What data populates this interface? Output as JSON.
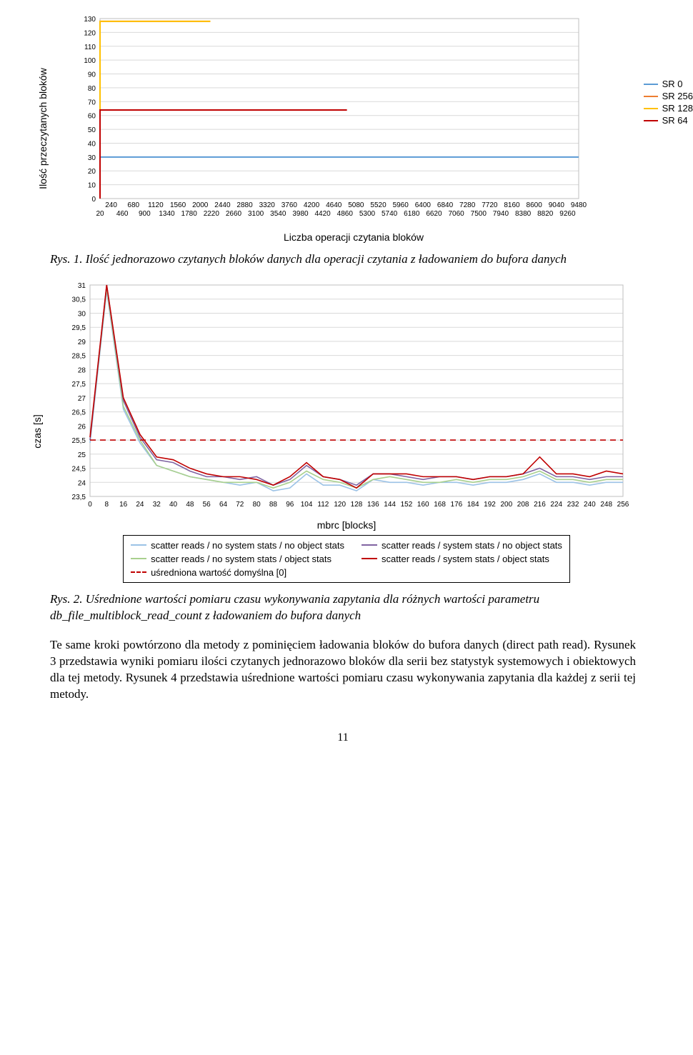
{
  "chart1": {
    "type": "line",
    "y_label": "Ilość przeczytanych bloków",
    "x_label": "Liczba operacji czytania bloków",
    "ylim": [
      0,
      130
    ],
    "ytick_step": 10,
    "yticks": [
      0,
      10,
      20,
      30,
      40,
      50,
      60,
      70,
      80,
      90,
      100,
      110,
      120,
      130
    ],
    "xticks_top": [
      240,
      680,
      1120,
      1560,
      2000,
      2440,
      2880,
      3320,
      3760,
      4200,
      4640,
      5080,
      5520,
      5960,
      6400,
      6840,
      7280,
      7720,
      8160,
      8600,
      9040,
      9480
    ],
    "xticks_bottom": [
      20,
      460,
      900,
      1340,
      1780,
      2220,
      2660,
      3100,
      3540,
      3980,
      4420,
      4860,
      5300,
      5740,
      6180,
      6620,
      7060,
      7500,
      7940,
      8380,
      8820,
      9260
    ],
    "xlim": [
      20,
      9480
    ],
    "background_color": "#ffffff",
    "grid_color": "#d9d9d9",
    "tick_fontsize": 10,
    "label_fontsize": 14,
    "series": [
      {
        "name": "SR 0",
        "color": "#5b9bd5",
        "value": 30,
        "start_x": 20
      },
      {
        "name": "SR 256",
        "color": "#ed7d31",
        "value": 128,
        "start_x": 20,
        "end_x": 2200
      },
      {
        "name": "SR 128",
        "color": "#ffc000",
        "value": 128,
        "start_x": 20,
        "end_x": 2200
      },
      {
        "name": "SR 64",
        "color": "#c00000",
        "value": 64,
        "start_x": 20,
        "end_x": 4900
      }
    ],
    "legend_items": [
      "SR 0",
      "SR 256",
      "SR 128",
      "SR 64"
    ],
    "legend_colors": [
      "#5b9bd5",
      "#ed7d31",
      "#ffc000",
      "#c00000"
    ]
  },
  "caption1_label": "Rys. 1.",
  "caption1_text": "Ilość jednorazowo czytanych bloków danych dla operacji czytania z ładowaniem do bufora danych",
  "chart2": {
    "type": "line",
    "y_label": "czas [s]",
    "x_label": "mbrc [blocks]",
    "ylim": [
      23.5,
      31
    ],
    "yticks": [
      "31",
      "30,5",
      "30",
      "29,5",
      "29",
      "28,5",
      "28",
      "27,5",
      "27",
      "26,5",
      "26",
      "25,5",
      "25",
      "24,5",
      "24",
      "23,5"
    ],
    "ytick_values": [
      31,
      30.5,
      30,
      29.5,
      29,
      28.5,
      28,
      27.5,
      27,
      26.5,
      26,
      25.5,
      25,
      24.5,
      24,
      23.5
    ],
    "xlim": [
      0,
      256
    ],
    "xtick_step": 8,
    "xticks": [
      0,
      8,
      16,
      24,
      32,
      40,
      48,
      56,
      64,
      72,
      80,
      88,
      96,
      104,
      112,
      120,
      128,
      136,
      144,
      152,
      160,
      168,
      176,
      184,
      192,
      200,
      208,
      216,
      224,
      232,
      240,
      248,
      256
    ],
    "background_color": "#ffffff",
    "grid_color": "#d9d9d9",
    "tick_fontsize": 10,
    "label_fontsize": 14,
    "series": [
      {
        "name": "scatter reads / no system stats / no object stats",
        "color": "#9bc2e6",
        "x": [
          0,
          8,
          16,
          24,
          32,
          40,
          48,
          56,
          64,
          72,
          80,
          88,
          96,
          104,
          112,
          120,
          128,
          136,
          144,
          152,
          160,
          168,
          176,
          184,
          192,
          200,
          208,
          216,
          224,
          232,
          240,
          248,
          256
        ],
        "y": [
          25.4,
          30.8,
          26.6,
          25.4,
          24.6,
          24.4,
          24.2,
          24.1,
          24.0,
          23.9,
          24.0,
          23.7,
          23.8,
          24.3,
          23.9,
          23.9,
          23.7,
          24.1,
          24.0,
          24.0,
          23.9,
          24.0,
          24.0,
          23.9,
          24.0,
          24.0,
          24.1,
          24.3,
          24.0,
          24.0,
          23.9,
          24.0,
          24.0
        ]
      },
      {
        "name": "scatter reads / no system stats / object stats",
        "color": "#a9d08e",
        "x": [
          0,
          8,
          16,
          24,
          32,
          40,
          48,
          56,
          64,
          72,
          80,
          88,
          96,
          104,
          112,
          120,
          128,
          136,
          144,
          152,
          160,
          168,
          176,
          184,
          192,
          200,
          208,
          216,
          224,
          232,
          240,
          248,
          256
        ],
        "y": [
          25.5,
          30.9,
          26.7,
          25.5,
          24.6,
          24.4,
          24.2,
          24.1,
          24.0,
          24.0,
          24.0,
          23.8,
          24.0,
          24.4,
          24.1,
          24.0,
          23.8,
          24.1,
          24.2,
          24.1,
          24.0,
          24.0,
          24.1,
          24.0,
          24.1,
          24.1,
          24.2,
          24.4,
          24.1,
          24.1,
          24.0,
          24.1,
          24.1
        ]
      },
      {
        "name": "scatter reads / system stats /  no object stats",
        "color": "#8064a2",
        "x": [
          0,
          8,
          16,
          24,
          32,
          40,
          48,
          56,
          64,
          72,
          80,
          88,
          96,
          104,
          112,
          120,
          128,
          136,
          144,
          152,
          160,
          168,
          176,
          184,
          192,
          200,
          208,
          216,
          224,
          232,
          240,
          248,
          256
        ],
        "y": [
          25.5,
          31.0,
          26.9,
          25.6,
          24.8,
          24.7,
          24.4,
          24.2,
          24.2,
          24.1,
          24.2,
          23.9,
          24.1,
          24.6,
          24.2,
          24.1,
          23.9,
          24.3,
          24.3,
          24.2,
          24.1,
          24.2,
          24.2,
          24.1,
          24.2,
          24.2,
          24.3,
          24.5,
          24.2,
          24.2,
          24.1,
          24.2,
          24.2
        ]
      },
      {
        "name": "scatter reads / system stats /  object stats",
        "color": "#c00000",
        "x": [
          0,
          8,
          16,
          24,
          32,
          40,
          48,
          56,
          64,
          72,
          80,
          88,
          96,
          104,
          112,
          120,
          128,
          136,
          144,
          152,
          160,
          168,
          176,
          184,
          192,
          200,
          208,
          216,
          224,
          232,
          240,
          248,
          256
        ],
        "y": [
          25.6,
          31.0,
          27.0,
          25.7,
          24.9,
          24.8,
          24.5,
          24.3,
          24.2,
          24.2,
          24.1,
          23.9,
          24.2,
          24.7,
          24.2,
          24.1,
          23.8,
          24.3,
          24.3,
          24.3,
          24.2,
          24.2,
          24.2,
          24.1,
          24.2,
          24.2,
          24.3,
          24.9,
          24.3,
          24.3,
          24.2,
          24.4,
          24.3
        ]
      },
      {
        "name": "uśredniona wartość domyślna [0]",
        "color": "#c00000",
        "dash": "8,6",
        "x": [
          0,
          256
        ],
        "y": [
          25.5,
          25.5
        ]
      }
    ]
  },
  "caption2_label": "Rys. 2.",
  "caption2_text": "Uśrednione wartości pomiaru czasu wykonywania zapytania dla różnych wartości parametru db_file_multiblock_read_count z ładowaniem do bufora danych",
  "body_text": "Te same kroki powtórzono dla metody z pominięciem ładowania bloków do bufora danych (direct path read). Rysunek 3 przedstawia wyniki pomiaru ilości czytanych jednorazowo bloków dla serii bez statystyk systemowych i obiektowych dla tej metody. Rysunek 4 przedstawia uśrednione wartości pomiaru czasu wykonywania zapytania dla każdej z serii tej metody.",
  "page_number": "11"
}
